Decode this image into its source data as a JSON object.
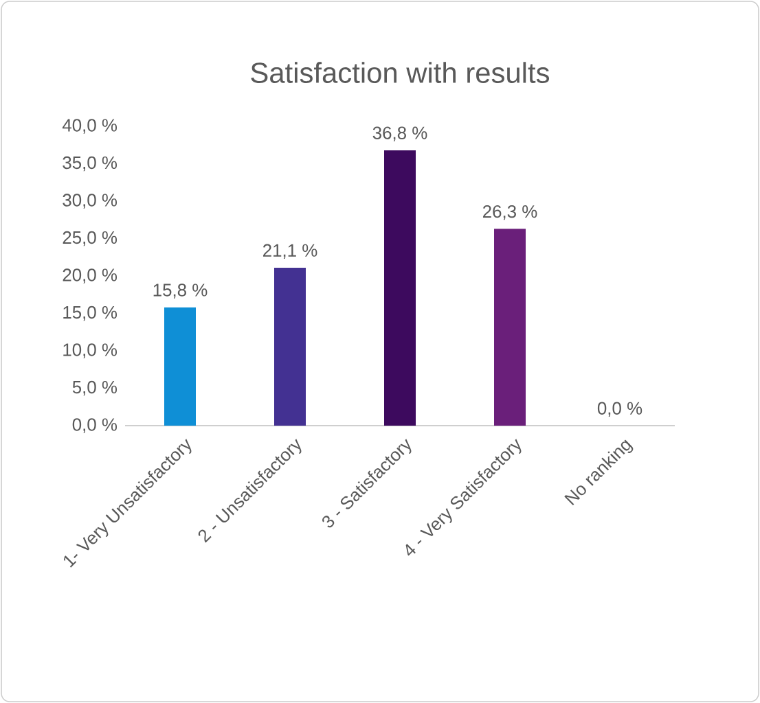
{
  "chart_data": {
    "type": "bar",
    "title": "Satisfaction with results",
    "categories": [
      "1- Very Unsatisfactory",
      "2 - Unsatisfactory",
      "3 - Satisfactory",
      "4 - Very Satisfactory",
      "No ranking"
    ],
    "values": [
      15.8,
      21.1,
      36.8,
      26.3,
      0.0
    ],
    "colors": [
      "#0f8fd6",
      "#433192",
      "#3d0a5e",
      "#6a1f7a",
      "#8a2d8a"
    ],
    "value_labels": [
      "15,8 %",
      "21,1 %",
      "36,8 %",
      "26,3 %",
      "0,0 %"
    ],
    "ylim": [
      0,
      40
    ],
    "yticks": [
      {
        "value": 0,
        "label": "0,0 %"
      },
      {
        "value": 5,
        "label": "5,0 %"
      },
      {
        "value": 10,
        "label": "10,0 %"
      },
      {
        "value": 15,
        "label": "15,0 %"
      },
      {
        "value": 20,
        "label": "20,0 %"
      },
      {
        "value": 25,
        "label": "25,0 %"
      },
      {
        "value": 30,
        "label": "30,0 %"
      },
      {
        "value": 35,
        "label": "35,0 %"
      },
      {
        "value": 40,
        "label": "40,0 %"
      }
    ]
  }
}
